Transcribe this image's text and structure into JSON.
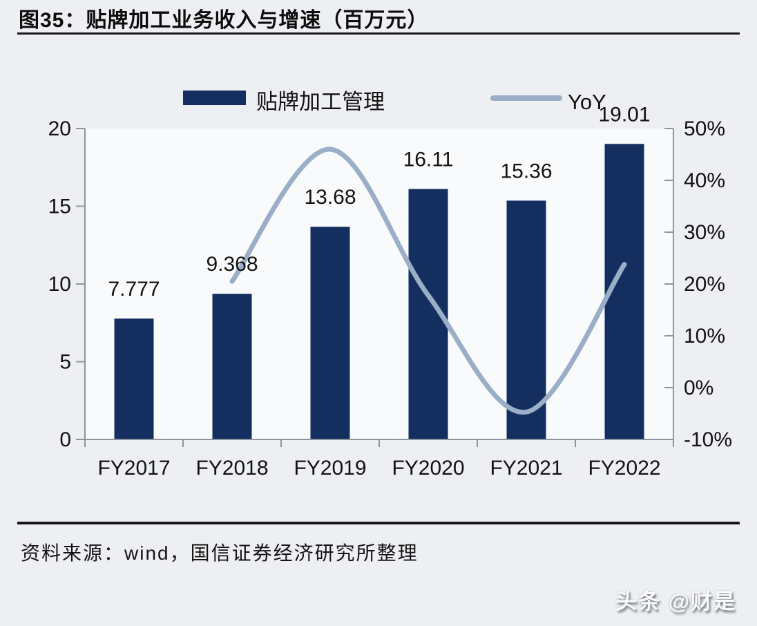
{
  "header": {
    "title": "图35：贴牌加工业务收入与增速（百万元）"
  },
  "footer": {
    "source": "资料来源：wind，国信证券经济研究所整理",
    "watermark": "头条 @财是"
  },
  "colors": {
    "bar": "#142f5f",
    "line": "#9aaec8",
    "axis": "#8e949c",
    "text": "#121212",
    "page_bg": "#edeff2",
    "plot_bg": "#f8fafc"
  },
  "chart_data": {
    "type": "bar",
    "title": "贴牌加工业务收入与增速（百万元）",
    "categories": [
      "FY2017",
      "FY2018",
      "FY2019",
      "FY2020",
      "FY2021",
      "FY2022"
    ],
    "series": [
      {
        "name": "贴牌加工管理",
        "type": "bar",
        "axis": "left",
        "values": [
          7.777,
          9.368,
          13.68,
          16.11,
          15.36,
          19.01
        ],
        "value_labels": [
          "7.777",
          "9.368",
          "13.68",
          "16.11",
          "15.36",
          "19.01"
        ]
      },
      {
        "name": "YoY",
        "type": "line",
        "axis": "right",
        "values": [
          null,
          20.5,
          46.0,
          17.8,
          -4.7,
          23.8
        ]
      }
    ],
    "left_axis": {
      "min": 0,
      "max": 20,
      "step": 5,
      "tick_labels": [
        "0",
        "5",
        "10",
        "15",
        "20"
      ]
    },
    "right_axis": {
      "min": -10,
      "max": 50,
      "step": 10,
      "tick_labels": [
        "-10%",
        "0%",
        "10%",
        "20%",
        "30%",
        "40%",
        "50%"
      ]
    },
    "xlabel": "",
    "ylabel": "",
    "grid": false,
    "legend_position": "top",
    "legend": [
      {
        "label": "贴牌加工管理",
        "marker": "bar"
      },
      {
        "label": "YoY",
        "marker": "line"
      }
    ]
  }
}
